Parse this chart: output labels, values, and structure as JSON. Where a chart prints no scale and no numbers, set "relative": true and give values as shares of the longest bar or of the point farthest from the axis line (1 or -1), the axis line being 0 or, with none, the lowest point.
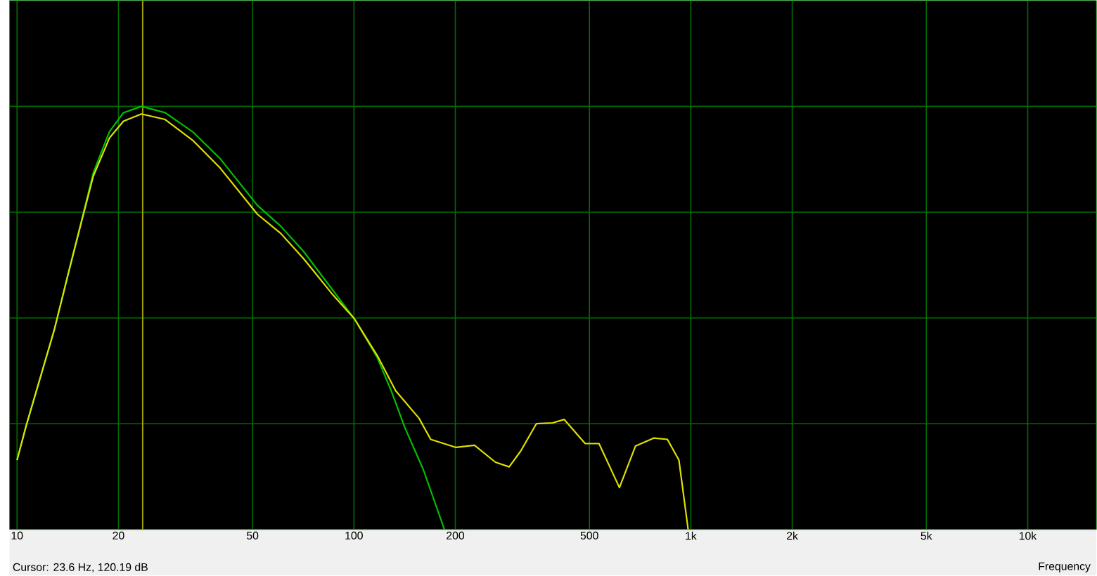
{
  "chart_data": {
    "type": "line",
    "xlabel": "Frequency",
    "log": "x",
    "grid": true,
    "relative": true,
    "xlim": [
      9.5,
      16000
    ],
    "xticks": [
      {
        "value": 10,
        "label": "10"
      },
      20,
      50,
      100,
      200,
      500,
      {
        "value": 1000,
        "label": "1k"
      },
      {
        "value": 2000,
        "label": "2k"
      },
      {
        "value": 5000,
        "label": "5k"
      },
      {
        "value": 10000,
        "label": "10k"
      }
    ],
    "series": [
      {
        "color": "#00c000",
        "x": [
          10,
          10.65,
          12.88,
          14.15,
          15.57,
          16.84,
          18.8,
          20.7,
          23.4,
          27.5,
          33.2,
          40.1,
          51.7,
          60.6,
          70.9,
          85.9,
          100.3,
          117.5,
          129,
          141.6,
          160.6,
          185.6
        ],
        "values": [
          0.164,
          0.246,
          0.47,
          0.602,
          0.733,
          0.843,
          0.94,
          0.985,
          1.0,
          0.985,
          0.94,
          0.876,
          0.766,
          0.717,
          0.657,
          0.569,
          0.498,
          0.405,
          0.328,
          0.241,
          0.142,
          0
        ]
      },
      {
        "color": "#e0e000",
        "x": [
          10,
          10.65,
          12.88,
          14.15,
          15.57,
          16.84,
          18.8,
          20.7,
          23.4,
          27.5,
          33.2,
          40.1,
          51.7,
          60.6,
          70.9,
          85.9,
          100.3,
          117.5,
          133,
          156,
          169,
          201,
          228,
          263,
          289,
          313,
          348,
          389,
          421,
          486,
          534,
          614,
          685,
          776,
          852,
          922,
          982
        ],
        "values": [
          0.164,
          0.246,
          0.47,
          0.6,
          0.73,
          0.835,
          0.925,
          0.965,
          0.982,
          0.969,
          0.92,
          0.854,
          0.745,
          0.7,
          0.64,
          0.558,
          0.498,
          0.41,
          0.328,
          0.263,
          0.213,
          0.194,
          0.199,
          0.159,
          0.148,
          0.186,
          0.25,
          0.252,
          0.26,
          0.203,
          0.203,
          0.099,
          0.197,
          0.216,
          0.213,
          0.164,
          0
        ]
      }
    ],
    "ref_lines": [
      {
        "axis": "x",
        "value": 23.6,
        "color": "#a0a000"
      }
    ],
    "annotations": [
      "Cursor: 23.6 Hz, 120.19 dB"
    ]
  }
}
